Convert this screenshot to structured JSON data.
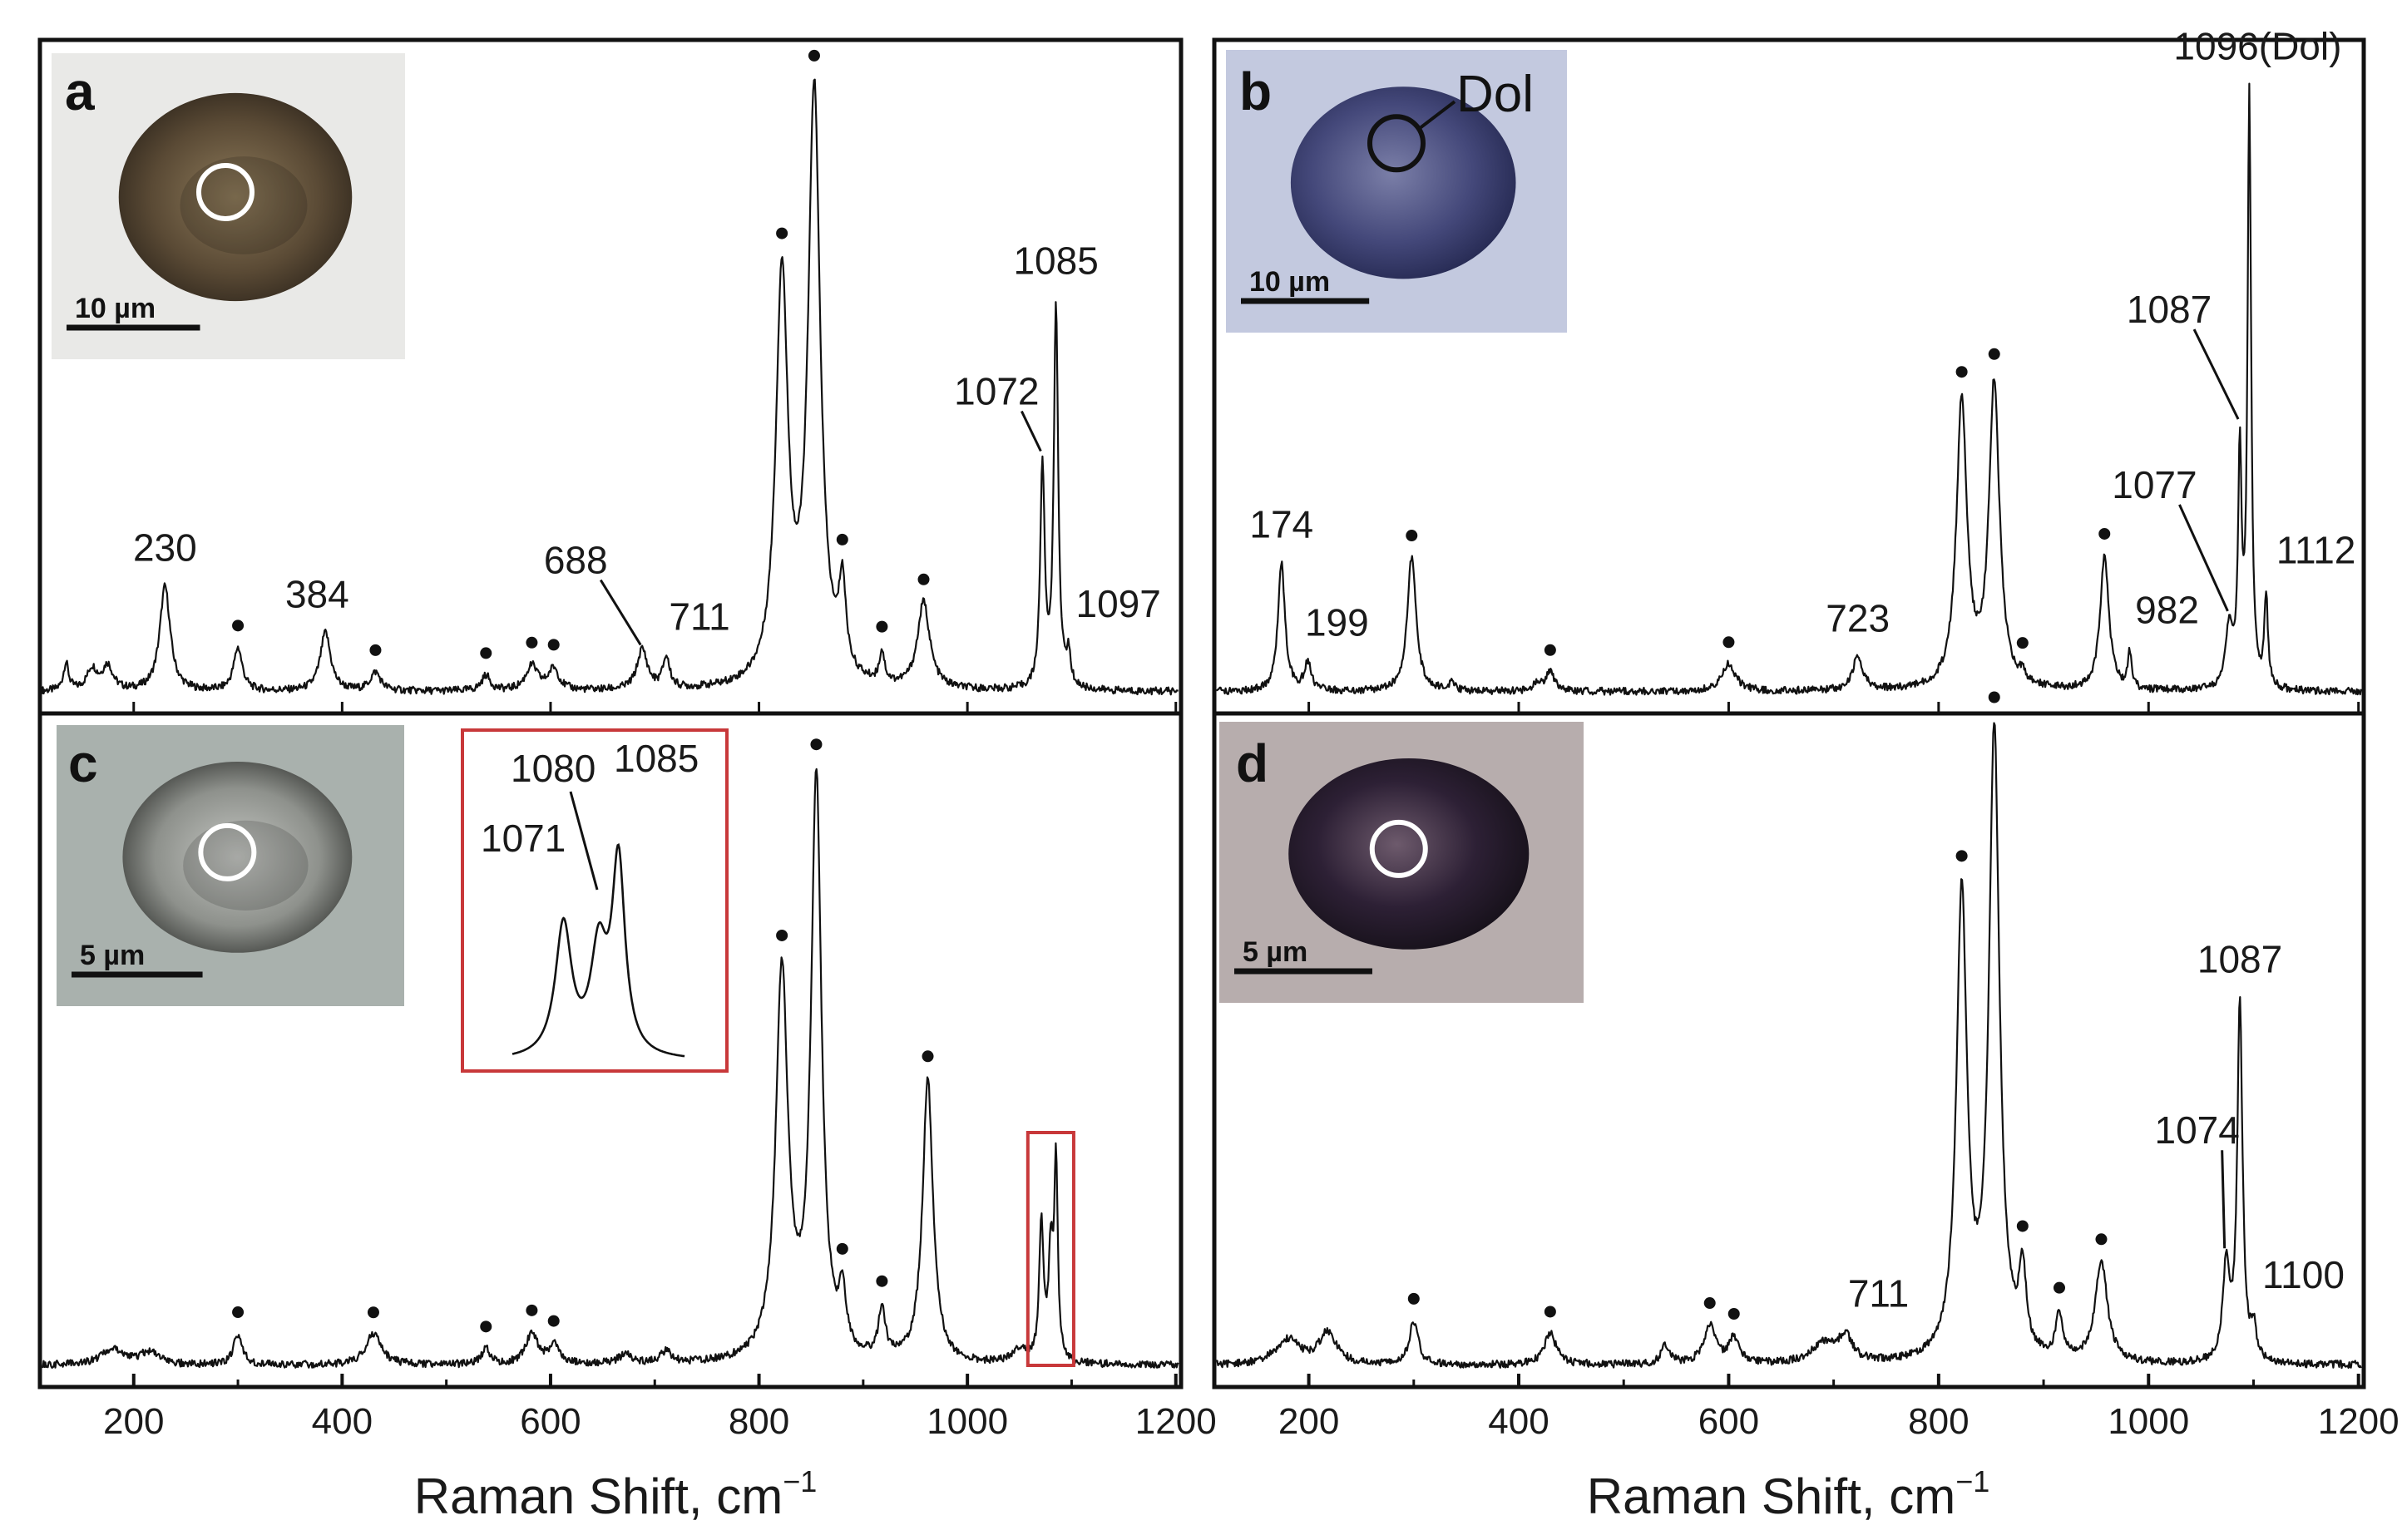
{
  "figure": {
    "xlabel_left": "Raman Shift, cm",
    "xlabel_right": "Raman Shift, cm",
    "xlabel_superscript": "−1",
    "marker_note": "•"
  },
  "chart_data": [
    {
      "type": "line",
      "panel": "a",
      "xlim": [
        110,
        1205
      ],
      "x_ticks": [
        200,
        400,
        600,
        800,
        1000,
        1200
      ],
      "x_tick_labels": [
        "200",
        "400",
        "600",
        "800",
        "1000",
        "1200"
      ],
      "baseline_peak_ratio_note": "",
      "peaks": [
        {
          "x": 135,
          "h": 0.045,
          "w": 3
        },
        {
          "x": 160,
          "h": 0.035,
          "w": 6
        },
        {
          "x": 175,
          "h": 0.04,
          "w": 6
        },
        {
          "x": 230,
          "h": 0.17,
          "w": 6
        },
        {
          "x": 300,
          "h": 0.07,
          "w": 5
        },
        {
          "x": 384,
          "h": 0.095,
          "w": 6
        },
        {
          "x": 432,
          "h": 0.03,
          "w": 6
        },
        {
          "x": 538,
          "h": 0.025,
          "w": 5
        },
        {
          "x": 582,
          "h": 0.04,
          "w": 7
        },
        {
          "x": 603,
          "h": 0.035,
          "w": 6
        },
        {
          "x": 688,
          "h": 0.065,
          "w": 6
        },
        {
          "x": 711,
          "h": 0.05,
          "w": 4
        },
        {
          "x": 822,
          "h": 0.66,
          "w": 7
        },
        {
          "x": 853,
          "h": 0.96,
          "w": 7
        },
        {
          "x": 880,
          "h": 0.14,
          "w": 4
        },
        {
          "x": 918,
          "h": 0.05,
          "w": 3
        },
        {
          "x": 958,
          "h": 0.14,
          "w": 7
        },
        {
          "x": 1072,
          "h": 0.36,
          "w": 2.5
        },
        {
          "x": 1085,
          "h": 0.62,
          "w": 2.5
        },
        {
          "x": 1097,
          "h": 0.05,
          "w": 2.5
        }
      ],
      "peak_labels": [
        {
          "x": 230,
          "text": "230"
        },
        {
          "x": 384,
          "text": "384"
        },
        {
          "x": 688,
          "text": "688"
        },
        {
          "x": 711,
          "text": "711"
        },
        {
          "x": 1072,
          "text": "1072"
        },
        {
          "x": 1085,
          "text": "1085"
        },
        {
          "x": 1097,
          "text": "1097"
        }
      ],
      "dot_markers_x": [
        300,
        432,
        538,
        582,
        603,
        822,
        853,
        880,
        918,
        958
      ],
      "image_inset": {
        "letter": "a",
        "scale_label": "10 µm",
        "theme": "brown"
      }
    },
    {
      "type": "line",
      "panel": "b",
      "xlim": [
        110,
        1205
      ],
      "x_ticks": [
        200,
        400,
        600,
        800,
        1000,
        1200
      ],
      "x_tick_labels": [
        "200",
        "400",
        "600",
        "800",
        "1000",
        "1200"
      ],
      "peaks": [
        {
          "x": 174,
          "h": 0.21,
          "w": 4
        },
        {
          "x": 199,
          "h": 0.045,
          "w": 4
        },
        {
          "x": 298,
          "h": 0.22,
          "w": 5
        },
        {
          "x": 336,
          "h": 0.015,
          "w": 3
        },
        {
          "x": 418,
          "h": 0.015,
          "w": 5
        },
        {
          "x": 430,
          "h": 0.03,
          "w": 5
        },
        {
          "x": 600,
          "h": 0.045,
          "w": 8
        },
        {
          "x": 723,
          "h": 0.055,
          "w": 6
        },
        {
          "x": 822,
          "h": 0.47,
          "w": 6
        },
        {
          "x": 853,
          "h": 0.5,
          "w": 6
        },
        {
          "x": 880,
          "h": 0.015,
          "w": 3
        },
        {
          "x": 958,
          "h": 0.22,
          "w": 5
        },
        {
          "x": 982,
          "h": 0.06,
          "w": 2
        },
        {
          "x": 1077,
          "h": 0.1,
          "w": 4
        },
        {
          "x": 1087,
          "h": 0.38,
          "w": 2
        },
        {
          "x": 1096,
          "h": 0.97,
          "w": 2
        },
        {
          "x": 1112,
          "h": 0.15,
          "w": 2
        }
      ],
      "peak_labels": [
        {
          "x": 174,
          "text": "174"
        },
        {
          "x": 199,
          "text": "199"
        },
        {
          "x": 723,
          "text": "723"
        },
        {
          "x": 982,
          "text": "982"
        },
        {
          "x": 1077,
          "text": "1077"
        },
        {
          "x": 1087,
          "text": "1087"
        },
        {
          "x": 1096,
          "text": "1096(Dol)"
        },
        {
          "x": 1112,
          "text": "1112"
        }
      ],
      "dot_markers_x": [
        298,
        430,
        600,
        822,
        853,
        880,
        958
      ],
      "image_inset": {
        "letter": "b",
        "scale_label": "10 µm",
        "theme": "blue",
        "inclusion_label": "Dol"
      }
    },
    {
      "type": "line",
      "panel": "c",
      "xlim": [
        110,
        1205
      ],
      "x_ticks": [
        200,
        400,
        600,
        800,
        1000,
        1200
      ],
      "x_tick_labels": [
        "200",
        "400",
        "600",
        "800",
        "1000",
        "1200"
      ],
      "peaks": [
        {
          "x": 180,
          "h": 0.025,
          "w": 14
        },
        {
          "x": 215,
          "h": 0.02,
          "w": 10
        },
        {
          "x": 300,
          "h": 0.05,
          "w": 5
        },
        {
          "x": 430,
          "h": 0.05,
          "w": 9
        },
        {
          "x": 538,
          "h": 0.025,
          "w": 5
        },
        {
          "x": 582,
          "h": 0.05,
          "w": 7
        },
        {
          "x": 603,
          "h": 0.03,
          "w": 6
        },
        {
          "x": 672,
          "h": 0.015,
          "w": 8
        },
        {
          "x": 711,
          "h": 0.02,
          "w": 6
        },
        {
          "x": 822,
          "h": 0.63,
          "w": 7
        },
        {
          "x": 855,
          "h": 0.94,
          "w": 6
        },
        {
          "x": 880,
          "h": 0.09,
          "w": 4
        },
        {
          "x": 918,
          "h": 0.08,
          "w": 4
        },
        {
          "x": 962,
          "h": 0.46,
          "w": 6
        },
        {
          "x": 1050,
          "h": 0.02,
          "w": 8
        },
        {
          "x": 1071,
          "h": 0.22,
          "w": 2.5
        },
        {
          "x": 1080,
          "h": 0.17,
          "w": 2.5
        },
        {
          "x": 1085,
          "h": 0.32,
          "w": 2
        }
      ],
      "peak_labels": [],
      "dot_markers_x": [
        300,
        430,
        538,
        582,
        603,
        822,
        855,
        880,
        918,
        962
      ],
      "zoom_box": {
        "x_range": [
          1058,
          1102
        ]
      },
      "zoom_inset_labels": [
        "1071",
        "1080",
        "1085"
      ],
      "image_inset": {
        "letter": "c",
        "scale_label": "5 µm",
        "theme": "gray"
      }
    },
    {
      "type": "line",
      "panel": "d",
      "xlim": [
        110,
        1205
      ],
      "x_ticks": [
        200,
        400,
        600,
        800,
        1000,
        1200
      ],
      "x_tick_labels": [
        "200",
        "400",
        "600",
        "800",
        "1000",
        "1200"
      ],
      "peaks": [
        {
          "x": 180,
          "h": 0.04,
          "w": 14
        },
        {
          "x": 218,
          "h": 0.05,
          "w": 10
        },
        {
          "x": 300,
          "h": 0.07,
          "w": 5
        },
        {
          "x": 430,
          "h": 0.05,
          "w": 7
        },
        {
          "x": 540,
          "h": 0.03,
          "w": 5
        },
        {
          "x": 582,
          "h": 0.06,
          "w": 7
        },
        {
          "x": 605,
          "h": 0.04,
          "w": 6
        },
        {
          "x": 690,
          "h": 0.03,
          "w": 14
        },
        {
          "x": 711,
          "h": 0.04,
          "w": 8
        },
        {
          "x": 822,
          "h": 0.74,
          "w": 6
        },
        {
          "x": 853,
          "h": 1.0,
          "w": 6
        },
        {
          "x": 880,
          "h": 0.13,
          "w": 4
        },
        {
          "x": 915,
          "h": 0.07,
          "w": 4
        },
        {
          "x": 955,
          "h": 0.16,
          "w": 7
        },
        {
          "x": 1074,
          "h": 0.15,
          "w": 4
        },
        {
          "x": 1087,
          "h": 0.57,
          "w": 3
        },
        {
          "x": 1100,
          "h": 0.05,
          "w": 3
        }
      ],
      "peak_labels": [
        {
          "x": 711,
          "text": "711"
        },
        {
          "x": 1074,
          "text": "1074"
        },
        {
          "x": 1087,
          "text": "1087"
        },
        {
          "x": 1100,
          "text": "1100"
        }
      ],
      "dot_markers_x": [
        300,
        430,
        582,
        605,
        822,
        853,
        880,
        915,
        955
      ],
      "image_inset": {
        "letter": "d",
        "scale_label": "5 µm",
        "theme": "dark"
      }
    }
  ]
}
